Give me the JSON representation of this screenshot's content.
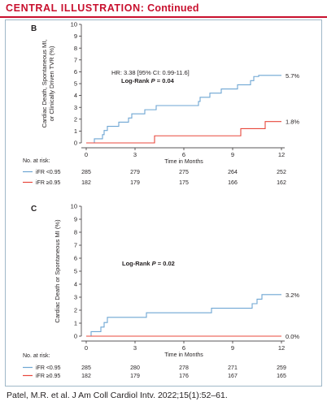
{
  "header": {
    "prefix": "CENTRAL ILLUSTRATION:",
    "suffix": "Continued"
  },
  "citation": "Patel, M.R. et al. J Am Coll Cardiol Intv. 2022;15(1):52–61.",
  "colors": {
    "blue": "#6ea6d3",
    "red": "#e8483c",
    "accent": "#c8102e",
    "frame": "#9fb8c8"
  },
  "chart_data": [
    {
      "type": "line",
      "panel_label": "B",
      "ylabel": [
        "Cardiac Death, Spontaneous MI,",
        "or Clinically Driven TVR (%)"
      ],
      "xlabel": "Time in Months",
      "xlim": [
        0,
        12
      ],
      "ylim": [
        0,
        10
      ],
      "xticks": [
        0,
        3,
        6,
        9,
        12
      ],
      "yticks": [
        0,
        1,
        2,
        3,
        4,
        5,
        6,
        7,
        8,
        9,
        10
      ],
      "grid": false,
      "annotation": {
        "hr": "HR: 3.38 [95% CI: 0.99-11.6]",
        "logrank_prefix": "Log-Rank ",
        "logrank_p": "P",
        "logrank_suffix": " = 0.04"
      },
      "series": [
        {
          "name": "iFR <0.95",
          "color": "#6ea6d3",
          "end_label": "5.7%",
          "x": [
            0,
            0.5,
            1.0,
            1.1,
            1.3,
            2.0,
            2.6,
            2.8,
            3.6,
            4.3,
            6.9,
            7.0,
            7.6,
            8.3,
            9.3,
            10.1,
            10.3,
            10.6,
            12.0
          ],
          "y": [
            0,
            0.35,
            0.7,
            1.05,
            1.4,
            1.75,
            2.1,
            2.45,
            2.8,
            3.15,
            3.5,
            3.85,
            4.2,
            4.55,
            4.9,
            5.25,
            5.6,
            5.7,
            5.7
          ]
        },
        {
          "name": "iFR ≥0.95",
          "color": "#e8483c",
          "end_label": "1.8%",
          "x": [
            0,
            4.2,
            9.5,
            11.0,
            12.0
          ],
          "y": [
            0,
            0.6,
            1.2,
            1.8,
            1.8
          ]
        }
      ],
      "at_risk": {
        "title": "No. at risk:",
        "rows": [
          {
            "name": "iFR <0.95",
            "color": "#6ea6d3",
            "values": [
              "285",
              "279",
              "275",
              "264",
              "252"
            ]
          },
          {
            "name": "iFR ≥0.95",
            "color": "#e8483c",
            "values": [
              "182",
              "179",
              "175",
              "166",
              "162"
            ]
          }
        ]
      }
    },
    {
      "type": "line",
      "panel_label": "C",
      "ylabel": [
        "Cardiac Death or Spontaneous MI (%)"
      ],
      "xlabel": "Time in Months",
      "xlim": [
        0,
        12
      ],
      "ylim": [
        0,
        10
      ],
      "xticks": [
        0,
        3,
        6,
        9,
        12
      ],
      "yticks": [
        0,
        1,
        2,
        3,
        4,
        5,
        6,
        7,
        8,
        9,
        10
      ],
      "grid": false,
      "annotation": {
        "hr": "",
        "logrank_prefix": "Log-Rank ",
        "logrank_p": "P",
        "logrank_suffix": " = 0.02"
      },
      "series": [
        {
          "name": "iFR <0.95",
          "color": "#6ea6d3",
          "end_label": "3.2%",
          "x": [
            0,
            0.3,
            0.9,
            1.1,
            1.3,
            3.7,
            7.7,
            10.2,
            10.5,
            10.8,
            12.0
          ],
          "y": [
            0,
            0.35,
            0.7,
            1.05,
            1.45,
            1.8,
            2.15,
            2.5,
            2.85,
            3.2,
            3.2
          ]
        },
        {
          "name": "iFR ≥0.95",
          "color": "#e8483c",
          "end_label": "0.0%",
          "x": [
            0,
            12.0
          ],
          "y": [
            0,
            0
          ]
        }
      ],
      "at_risk": {
        "title": "No. at risk:",
        "rows": [
          {
            "name": "iFR <0.95",
            "color": "#6ea6d3",
            "values": [
              "285",
              "280",
              "278",
              "271",
              "259"
            ]
          },
          {
            "name": "iFR ≥0.95",
            "color": "#e8483c",
            "values": [
              "182",
              "179",
              "176",
              "167",
              "165"
            ]
          }
        ]
      }
    }
  ]
}
